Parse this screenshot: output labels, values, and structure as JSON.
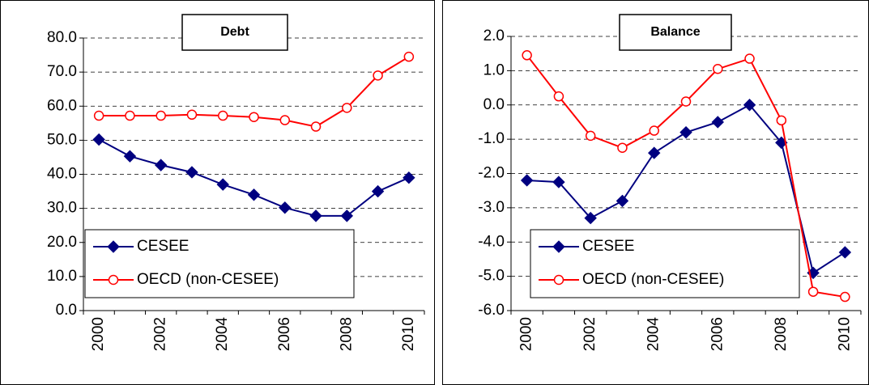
{
  "chart_data": [
    {
      "type": "line",
      "title": "Debt",
      "categories": [
        "2000",
        null,
        "2002",
        null,
        "2004",
        null,
        "2006",
        null,
        "2008",
        null,
        "2010"
      ],
      "series": [
        {
          "name": "CESEE",
          "color": "#000080",
          "marker": "diamond",
          "values": [
            50.2,
            45.3,
            42.7,
            40.6,
            37.0,
            34.0,
            30.2,
            27.8,
            27.8,
            35.0,
            39.0
          ]
        },
        {
          "name": "OECD (non-CESEE)",
          "color": "#ff0000",
          "marker": "circle",
          "values": [
            57.2,
            57.2,
            57.2,
            57.5,
            57.2,
            56.8,
            55.9,
            54.0,
            59.5,
            69.0,
            74.5
          ]
        }
      ],
      "ylim": [
        0,
        80
      ],
      "yticks": [
        {
          "value": 0,
          "label": "0.0"
        },
        {
          "value": 10,
          "label": "10.0"
        },
        {
          "value": 20,
          "label": "20.0"
        },
        {
          "value": 30,
          "label": "30.0"
        },
        {
          "value": 40,
          "label": "40.0"
        },
        {
          "value": 50,
          "label": "50.0"
        },
        {
          "value": 60,
          "label": "60.0"
        },
        {
          "value": 70,
          "label": "70.0"
        },
        {
          "value": 80,
          "label": "80.0"
        }
      ],
      "grid": true
    },
    {
      "type": "line",
      "title": "Balance",
      "categories": [
        "2000",
        null,
        "2002",
        null,
        "2004",
        null,
        "2006",
        null,
        "2008",
        null,
        "2010"
      ],
      "series": [
        {
          "name": "CESEE",
          "color": "#000080",
          "marker": "diamond",
          "values": [
            -2.2,
            -2.25,
            -3.3,
            -2.8,
            -1.4,
            -0.8,
            -0.5,
            0.0,
            -1.1,
            -4.9,
            -4.3
          ]
        },
        {
          "name": "OECD (non-CESEE)",
          "color": "#ff0000",
          "marker": "circle",
          "values": [
            1.45,
            0.25,
            -0.9,
            -1.25,
            -0.75,
            0.1,
            1.05,
            1.35,
            -0.45,
            -5.45,
            -5.6
          ]
        }
      ],
      "ylim": [
        -6,
        2
      ],
      "yticks": [
        {
          "value": -6,
          "label": "-6.0"
        },
        {
          "value": -5,
          "label": "-5.0"
        },
        {
          "value": -4,
          "label": "-4.0"
        },
        {
          "value": -3,
          "label": "-3.0"
        },
        {
          "value": -2,
          "label": "-2.0"
        },
        {
          "value": -1,
          "label": "-1.0"
        },
        {
          "value": 0,
          "label": "0.0"
        },
        {
          "value": 1,
          "label": "1.0"
        },
        {
          "value": 2,
          "label": "2.0"
        }
      ],
      "grid": true
    }
  ]
}
